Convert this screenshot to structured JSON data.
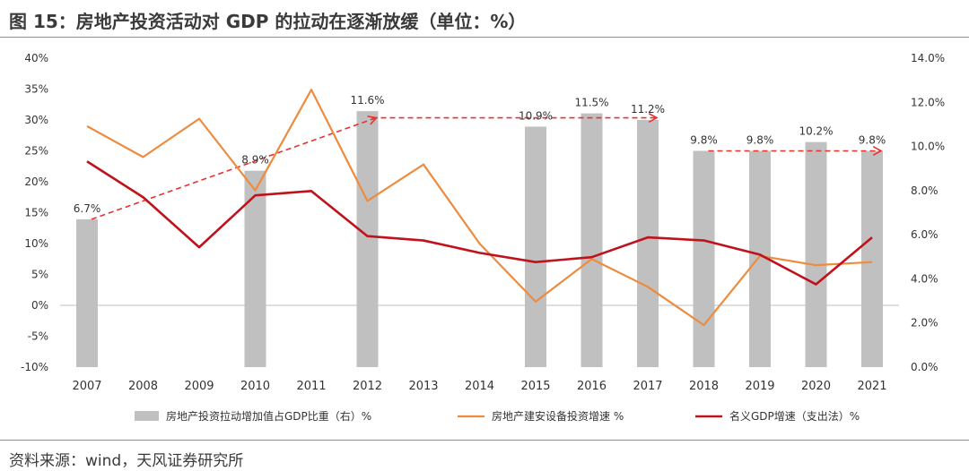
{
  "title": "图 15：房地产投资活动对 GDP 的拉动在逐渐放缓（单位：%）",
  "source": "资料来源：wind，天风证券研究所",
  "chart_data": {
    "type": "bar+line",
    "categories": [
      "2007",
      "2008",
      "2009",
      "2010",
      "2011",
      "2012",
      "2013",
      "2014",
      "2015",
      "2016",
      "2017",
      "2018",
      "2019",
      "2020",
      "2021"
    ],
    "left_axis": {
      "min": -10,
      "max": 40,
      "step": 5,
      "tick_labels": [
        "-10%",
        "-5%",
        "0%",
        "5%",
        "10%",
        "15%",
        "20%",
        "25%",
        "30%",
        "35%",
        "40%"
      ]
    },
    "right_axis": {
      "min": 0,
      "max": 14,
      "step": 2,
      "tick_labels": [
        "0.0%",
        "2.0%",
        "4.0%",
        "6.0%",
        "8.0%",
        "10.0%",
        "12.0%",
        "14.0%"
      ]
    },
    "series": [
      {
        "name": "房地产投资拉动增加值占GDP比重（右）%",
        "type": "bar",
        "axis": "right",
        "color": "#c0c0c0",
        "values": [
          6.7,
          null,
          null,
          8.9,
          null,
          11.6,
          null,
          null,
          10.9,
          11.5,
          11.2,
          9.8,
          9.8,
          10.2,
          9.8
        ],
        "labels": [
          "6.7%",
          "",
          "",
          "8.9%",
          "",
          "11.6%",
          "",
          "",
          "10.9%",
          "11.5%",
          "11.2%",
          "9.8%",
          "9.8%",
          "10.2%",
          "9.8%"
        ]
      },
      {
        "name": "房地产建安设备投资增速 %",
        "type": "line",
        "axis": "left",
        "color": "#ed8b3f",
        "values": [
          29,
          24,
          30.2,
          18.6,
          34.9,
          16.9,
          22.8,
          10,
          0.6,
          7.5,
          3,
          -3.2,
          8,
          6.5,
          7
        ]
      },
      {
        "name": "名义GDP增速（支出法）%",
        "type": "line",
        "axis": "left",
        "color": "#c0121c",
        "values": [
          23.3,
          17.5,
          9.4,
          17.8,
          18.5,
          11.2,
          10.5,
          8.5,
          7,
          7.8,
          11,
          10.5,
          8.2,
          3.4,
          11
        ]
      }
    ],
    "trend_arrows": {
      "color": "#e8322f",
      "segments": [
        {
          "from": "2007",
          "to": "2012",
          "axis": "right",
          "values": [
            6.7,
            11.3
          ]
        },
        {
          "from": "2012",
          "to": "2017",
          "axis": "right",
          "values": [
            11.3,
            11.3
          ]
        },
        {
          "from": "2018",
          "to": "2021",
          "axis": "right",
          "values": [
            9.8,
            9.8
          ]
        }
      ]
    },
    "legend_position": "bottom",
    "grid": false
  }
}
